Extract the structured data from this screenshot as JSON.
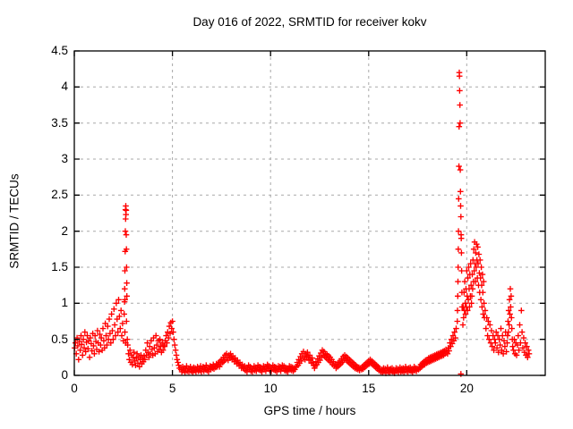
{
  "chart_data": {
    "type": "scatter",
    "title": "Day 016 of 2022, SRMTID for receiver kokv",
    "xlabel": "GPS time / hours",
    "ylabel": "SRMTID / TECUs",
    "xlim": [
      0,
      24
    ],
    "ylim": [
      0,
      4.5
    ],
    "xticks": [
      0,
      5,
      10,
      15,
      20
    ],
    "xtick_labels": [
      "0",
      "5",
      "10",
      "15",
      "20"
    ],
    "yticks": [
      0,
      0.5,
      1,
      1.5,
      2,
      2.5,
      3,
      3.5,
      4,
      4.5
    ],
    "ytick_labels": [
      "0",
      "0.5",
      "1",
      "1.5",
      "2",
      "2.5",
      "3",
      "3.5",
      "4",
      "4.5"
    ],
    "grid": true,
    "legend": "none",
    "marker": "plus",
    "marker_color": "#ff0000",
    "grid_color": "#a8a8a8",
    "border_color": "#000000",
    "notable_features": [
      "dense band 0.2-1.0 TECUs from 0 to 2.4 h",
      "narrow spike to 2.35 TECUs near 2.6 h",
      "moderate bump to 0.75 TECUs near 5 h",
      "quiet band 0.02-0.35 TECUs from 5.5 to 17.5 h with small bumps at 8, 11.8, 12.8, 14 h",
      "rising activity after 17.5 h",
      "tall narrow spike to 4.2 TECUs near 19.65 h",
      "broad active cluster 0.5-1.85 TECUs from 19.8 to 21 h",
      "secondary spikes to 1.2 near 22.2 h and 0.9 near 22.8 h, data ends near 23.2 h"
    ],
    "segments": [
      {
        "t0": 0.02,
        "dt": 0.04,
        "v": [
          0.38,
          0.45,
          0.3,
          0.52,
          0.41,
          0.22,
          0.47,
          0.35,
          0.55,
          0.43,
          0.28,
          0.5,
          0.38,
          0.6,
          0.33,
          0.46,
          0.55,
          0.37,
          0.48,
          0.25,
          0.52,
          0.44,
          0.34,
          0.58,
          0.41,
          0.3,
          0.55,
          0.47,
          0.36,
          0.62,
          0.45,
          0.33,
          0.57,
          0.42,
          0.52,
          0.35,
          0.65,
          0.48,
          0.38,
          0.72,
          0.55,
          0.42,
          0.68,
          0.5,
          0.78,
          0.58,
          0.45,
          0.85,
          0.62,
          0.5,
          0.92,
          0.7,
          0.55,
          1.0,
          0.78,
          0.6,
          1.05,
          0.82,
          0.65,
          0.9
        ]
      },
      {
        "t0": 2.42,
        "dt": 0.04,
        "v": [
          0.55,
          0.72,
          0.48,
          0.85,
          0.6,
          0.45,
          0.75,
          0.5
        ]
      },
      {
        "t0": 2.56,
        "dt": 0.008,
        "v": [
          1.02,
          1.2,
          1.45,
          1.05,
          1.72,
          2.0,
          2.3,
          2.17,
          2.35,
          2.23,
          2.29,
          1.95,
          1.75,
          1.5,
          1.28,
          1.1
        ]
      },
      {
        "t0": 2.72,
        "dt": 0.04,
        "v": [
          0.42,
          0.3,
          0.22,
          0.35,
          0.18,
          0.28,
          0.15,
          0.25,
          0.32,
          0.2,
          0.14,
          0.24,
          0.3,
          0.17,
          0.26,
          0.12,
          0.22,
          0.28,
          0.16,
          0.24,
          0.19,
          0.27
        ]
      },
      {
        "t0": 3.6,
        "dt": 0.04,
        "v": [
          0.22,
          0.35,
          0.28,
          0.45,
          0.32,
          0.25,
          0.4,
          0.3,
          0.48,
          0.36,
          0.28,
          0.52,
          0.38,
          0.3,
          0.55,
          0.42,
          0.33,
          0.48,
          0.36,
          0.5,
          0.4,
          0.32,
          0.45,
          0.35,
          0.42
        ]
      },
      {
        "t0": 4.6,
        "dt": 0.04,
        "v": [
          0.4,
          0.48,
          0.55,
          0.45,
          0.6,
          0.52,
          0.68,
          0.58,
          0.73,
          0.65,
          0.75,
          0.6,
          0.5,
          0.42,
          0.35,
          0.28,
          0.22,
          0.18,
          0.14,
          0.1
        ]
      },
      {
        "t0": 5.44,
        "dt": 0.04,
        "v": [
          0.08,
          0.05,
          0.12,
          0.07,
          0.1,
          0.04,
          0.09,
          0.13,
          0.06,
          0.1,
          0.05,
          0.08,
          0.12,
          0.06,
          0.09,
          0.04,
          0.11,
          0.07,
          0.1,
          0.05,
          0.08,
          0.12,
          0.06,
          0.1,
          0.07,
          0.13,
          0.05,
          0.09,
          0.12,
          0.06,
          0.1,
          0.08,
          0.14,
          0.07,
          0.11,
          0.05,
          0.09,
          0.13,
          0.08,
          0.12,
          0.1,
          0.15,
          0.09,
          0.13,
          0.11,
          0.16,
          0.12
        ]
      },
      {
        "t0": 7.32,
        "dt": 0.04,
        "v": [
          0.14,
          0.18,
          0.12,
          0.2,
          0.16,
          0.22,
          0.18,
          0.25,
          0.2,
          0.28,
          0.22,
          0.3,
          0.25,
          0.21,
          0.28,
          0.24,
          0.3,
          0.26,
          0.22,
          0.27,
          0.23,
          0.19,
          0.24,
          0.2,
          0.16,
          0.21,
          0.17,
          0.13,
          0.18,
          0.14,
          0.1,
          0.15,
          0.11
        ]
      },
      {
        "t0": 8.64,
        "dt": 0.04,
        "v": [
          0.09,
          0.13,
          0.07,
          0.11,
          0.05,
          0.1,
          0.14,
          0.08,
          0.12,
          0.06,
          0.1,
          0.05,
          0.09,
          0.13,
          0.07,
          0.11,
          0.06,
          0.1,
          0.14,
          0.08,
          0.12,
          0.07,
          0.11,
          0.05,
          0.09,
          0.13,
          0.08,
          0.12,
          0.06,
          0.1,
          0.15,
          0.09,
          0.13,
          0.07,
          0.11,
          0.06,
          0.1,
          0.14,
          0.08,
          0.12,
          0.07,
          0.11,
          0.05,
          0.09,
          0.13,
          0.08,
          0.12,
          0.06,
          0.1,
          0.14,
          0.09,
          0.13,
          0.07,
          0.11,
          0.06,
          0.1,
          0.05,
          0.09,
          0.13,
          0.08,
          0.12,
          0.07,
          0.11,
          0.06,
          0.1,
          0.08,
          0.12
        ]
      },
      {
        "t0": 11.32,
        "dt": 0.04,
        "v": [
          0.12,
          0.18,
          0.14,
          0.22,
          0.17,
          0.26,
          0.2,
          0.3,
          0.24,
          0.33,
          0.27,
          0.22,
          0.3,
          0.25,
          0.32,
          0.26,
          0.21,
          0.28,
          0.22,
          0.17,
          0.24,
          0.18,
          0.14,
          0.1
        ]
      },
      {
        "t0": 12.28,
        "dt": 0.04,
        "v": [
          0.13,
          0.19,
          0.15,
          0.23,
          0.18,
          0.27,
          0.21,
          0.31,
          0.25,
          0.35,
          0.28,
          0.33,
          0.26,
          0.3,
          0.24,
          0.29,
          0.22,
          0.27,
          0.2,
          0.25,
          0.18,
          0.22,
          0.15,
          0.19,
          0.13,
          0.16
        ]
      },
      {
        "t0": 13.34,
        "dt": 0.04,
        "v": [
          0.1,
          0.15,
          0.12,
          0.18,
          0.14,
          0.2,
          0.16,
          0.23,
          0.18,
          0.26,
          0.21,
          0.28,
          0.23,
          0.26,
          0.2,
          0.24,
          0.18,
          0.22,
          0.16,
          0.2,
          0.14,
          0.18,
          0.12,
          0.16,
          0.1,
          0.14,
          0.09,
          0.12,
          0.08,
          0.11,
          0.07,
          0.1
        ]
      },
      {
        "t0": 14.64,
        "dt": 0.04,
        "v": [
          0.08,
          0.12,
          0.09,
          0.14,
          0.11,
          0.16,
          0.13,
          0.18,
          0.15,
          0.2,
          0.16,
          0.22,
          0.17,
          0.2,
          0.15,
          0.18,
          0.13,
          0.16,
          0.11,
          0.14,
          0.09,
          0.12,
          0.07,
          0.1,
          0.06
        ]
      },
      {
        "t0": 15.64,
        "dt": 0.04,
        "v": [
          0.05,
          0.08,
          0.04,
          0.1,
          0.06,
          0.09,
          0.03,
          0.07,
          0.11,
          0.05,
          0.08,
          0.04,
          0.09,
          0.06,
          0.1,
          0.05,
          0.08,
          0.03,
          0.07,
          0.1,
          0.06,
          0.09,
          0.04,
          0.08,
          0.11,
          0.05,
          0.09,
          0.06,
          0.1,
          0.04,
          0.08,
          0.12,
          0.06,
          0.09,
          0.05,
          0.1,
          0.07,
          0.11,
          0.06,
          0.09,
          0.04,
          0.08,
          0.12,
          0.07,
          0.1,
          0.06,
          0.09
        ]
      },
      {
        "t0": 17.54,
        "dt": 0.04,
        "v": [
          0.08,
          0.12,
          0.1,
          0.15,
          0.12,
          0.17,
          0.14,
          0.19,
          0.15,
          0.21,
          0.17,
          0.22,
          0.18,
          0.24,
          0.19,
          0.25,
          0.2,
          0.26,
          0.21,
          0.27,
          0.22,
          0.28,
          0.23,
          0.29,
          0.24,
          0.3,
          0.25,
          0.31,
          0.26,
          0.32,
          0.27,
          0.33,
          0.28,
          0.34,
          0.3,
          0.36,
          0.32
        ]
      },
      {
        "t0": 19.02,
        "dt": 0.04,
        "v": [
          0.3,
          0.38,
          0.34,
          0.45,
          0.4,
          0.5,
          0.44,
          0.55,
          0.48,
          0.6,
          0.52,
          0.65
        ]
      },
      {
        "t0": 19.52,
        "dt": 0.01,
        "v": [
          0.75,
          0.9,
          1.1,
          1.3,
          1.5,
          1.75,
          2.0,
          2.45,
          2.9,
          3.45,
          4.2,
          4.15,
          3.95,
          3.75,
          3.5,
          2.85,
          2.55,
          2.35,
          2.2,
          1.95,
          1.9,
          1.7,
          1.45,
          1.15,
          0.95
        ]
      },
      {
        "t0": 19.7,
        "dt": 0,
        "v": [
          0.02
        ]
      },
      {
        "t0": 19.8,
        "dt": 0.02,
        "v": [
          0.7,
          0.95,
          0.8,
          1.15,
          0.9,
          1.3,
          1.0,
          0.85,
          1.2,
          0.95,
          1.45,
          1.1,
          0.9,
          1.35,
          1.05,
          1.5,
          1.2,
          0.95,
          1.4,
          1.1,
          1.55,
          1.25,
          1.0
        ]
      },
      {
        "t0": 20.26,
        "dt": 0.02,
        "v": [
          1.1,
          1.4,
          1.2,
          1.6,
          1.3,
          1.75,
          1.45,
          1.85,
          1.55,
          1.3,
          1.7,
          1.5,
          1.82,
          1.6,
          1.35,
          1.78,
          1.55,
          1.25,
          1.68,
          1.42,
          1.15,
          1.6,
          1.35,
          1.05,
          1.5,
          1.25,
          0.95,
          1.4,
          1.15,
          0.85,
          1.3,
          1.0,
          0.8
        ]
      },
      {
        "t0": 20.94,
        "dt": 0.04,
        "v": [
          0.9,
          0.65,
          0.8,
          0.55,
          0.75,
          0.5,
          0.7,
          0.45,
          0.62,
          0.4,
          0.55,
          0.35,
          0.5
        ]
      },
      {
        "t0": 21.46,
        "dt": 0.04,
        "v": [
          0.45,
          0.6,
          0.38,
          0.55,
          0.32,
          0.5,
          0.42,
          0.65,
          0.35,
          0.55,
          0.3,
          0.48,
          0.4,
          0.6,
          0.33,
          0.45
        ]
      },
      {
        "t0": 22.08,
        "dt": 0.02,
        "v": [
          0.55,
          0.75,
          0.6,
          0.9,
          0.7,
          1.05,
          0.85,
          1.2,
          0.95,
          1.1,
          0.8,
          0.65,
          0.5,
          0.4
        ]
      },
      {
        "t0": 22.38,
        "dt": 0.04,
        "v": [
          0.35,
          0.5,
          0.3,
          0.45,
          0.28,
          0.42,
          0.55,
          0.35,
          0.7,
          0.45,
          0.9,
          0.6,
          0.38,
          0.52,
          0.32,
          0.45,
          0.28,
          0.4,
          0.25,
          0.35,
          0.3
        ]
      }
    ]
  }
}
